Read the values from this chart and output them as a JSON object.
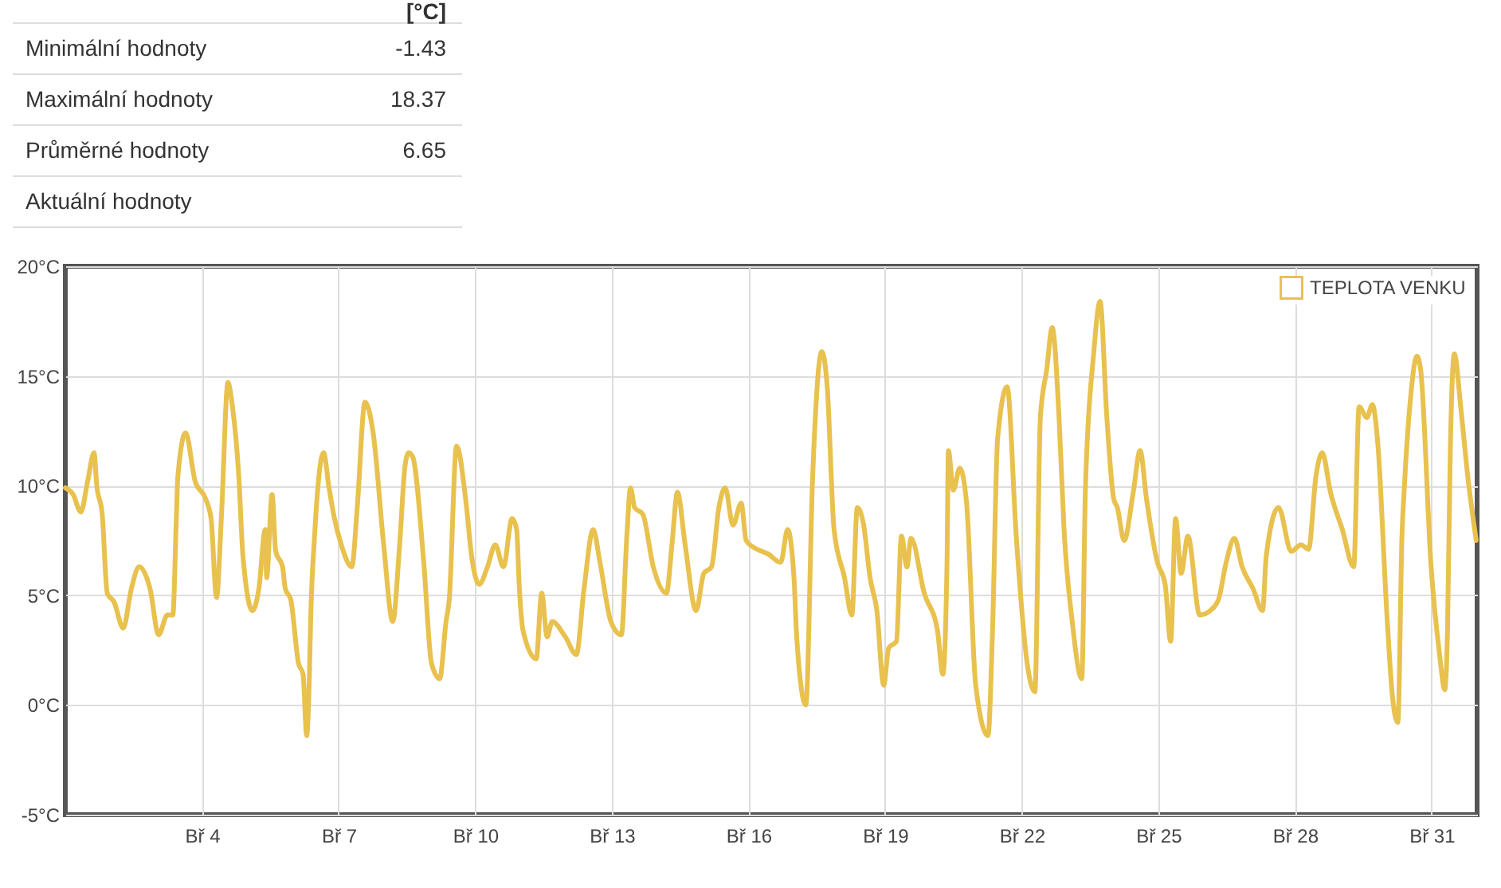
{
  "chart_data": {
    "type": "line",
    "annotations": [
      "[°C]",
      "Minimální hodnoty",
      "-1.43",
      "Maximální hodnoty",
      "18.37",
      "Průměrné hodnoty",
      "6.65",
      "Aktuální hodnoty"
    ],
    "x": [
      "--03-01T00:00",
      "--03-01T04:05",
      "--03-01T08:10",
      "--03-01T11:46",
      "--03-01T15:07",
      "--03-01T16:34",
      "--03-01T19:26",
      "--03-01T22:05",
      "--03-02T01:41",
      "--03-02T06:29",
      "--03-02T10:48",
      "--03-02T14:53",
      "--03-02T20:38",
      "--03-03T01:12",
      "--03-03T05:46",
      "--03-03T08:38",
      "--03-03T10:34",
      "--03-03T11:17",
      "--03-03T15:22",
      "--03-03T20:24",
      "--03-04T01:55",
      "--03-04T04:48",
      "--03-04T07:41",
      "--03-04T10:19",
      "--03-04T13:41",
      "--03-04T16:05",
      "--03-04T19:26",
      "--03-04T21:36",
      "--03-05T02:38",
      "--03-05T06:00",
      "--03-05T09:22",
      "--03-05T10:05",
      "--03-05T12:58",
      "--03-05T14:53",
      "--03-05T18:29",
      "--03-05T19:55",
      "--03-05T22:48",
      "--03-06T02:53",
      "--03-06T05:17",
      "--03-06T07:12",
      "--03-06T08:38",
      "--03-06T09:22",
      "--03-06T11:17",
      "--03-06T16:05",
      "--03-06T18:58",
      "--03-06T21:50",
      "--03-07T01:26",
      "--03-07T06:58",
      "--03-07T09:50",
      "--03-07T13:55",
      "--03-07T18:14",
      "--03-07T23:46",
      "--03-08T04:34",
      "--03-08T08:10",
      "--03-08T11:02",
      "--03-08T12:58",
      "--03-08T15:07",
      "--03-08T20:53",
      "--03-09T00:58",
      "--03-09T05:17",
      "--03-09T08:38",
      "--03-09T10:19",
      "--03-09T14:10",
      "--03-09T19:12",
      "--03-09T22:05",
      "--03-10T02:10",
      "--03-10T06:29",
      "--03-10T10:34",
      "--03-10T14:53",
      "--03-10T19:26",
      "--03-10T21:50",
      "--03-10T23:17",
      "--03-11T01:12",
      "--03-11T08:10",
      "--03-11T11:02",
      "--03-11T13:55",
      "--03-11T16:34",
      "--03-11T23:31",
      "--03-12T05:17",
      "--03-12T09:22",
      "--03-12T14:10",
      "--03-12T17:46",
      "--03-12T23:31",
      "--03-13T05:02",
      "--03-13T07:55",
      "--03-13T09:50",
      "--03-13T12:00",
      "--03-13T16:19",
      "--03-13T21:50",
      "--03-14T04:48",
      "--03-14T07:41",
      "--03-14T10:34",
      "--03-14T14:38",
      "--03-14T20:24",
      "--03-15T00:29",
      "--03-15T04:34",
      "--03-15T08:24",
      "--03-15T11:46",
      "--03-15T15:50",
      "--03-15T20:10",
      "--03-15T22:48",
      "--03-16T04:34",
      "--03-16T10:05",
      "--03-16T17:02",
      "--03-16T20:38",
      "--03-17T00:00",
      "--03-17T01:26",
      "--03-17T06:14",
      "--03-17T09:50",
      "--03-17T14:38",
      "--03-17T17:31",
      "--03-17T21:07",
      "--03-18T02:38",
      "--03-18T06:29",
      "--03-18T09:22",
      "--03-18T12:43",
      "--03-18T16:05",
      "--03-18T19:41",
      "--03-18T23:17",
      "--03-19T01:55",
      "--03-19T06:00",
      "--03-19T08:38",
      "--03-19T11:31",
      "--03-19T13:41",
      "--03-19T20:38",
      "--03-20T03:36",
      "--03-20T06:29",
      "--03-20T08:38",
      "--03-20T09:22",
      "--03-20T12:00",
      "--03-20T15:22",
      "--03-20T18:58",
      "--03-20T23:46",
      "--03-21T06:14",
      "--03-21T08:38",
      "--03-21T11:17",
      "--03-21T16:19",
      "--03-21T21:07",
      "--03-22T02:53",
      "--03-22T06:58",
      "--03-22T09:50",
      "--03-22T13:12",
      "--03-22T16:05",
      "--03-22T19:41",
      "--03-22T22:19",
      "--03-23T02:38",
      "--03-23T07:41",
      "--03-23T09:36",
      "--03-23T13:55",
      "--03-23T17:17",
      "--03-23T20:53",
      "--03-24T00:29",
      "--03-24T02:24",
      "--03-24T06:00",
      "--03-24T10:48",
      "--03-24T14:24",
      "--03-24T17:46",
      "--03-24T23:31",
      "--03-25T03:36",
      "--03-25T06:29",
      "--03-25T09:07",
      "--03-25T12:00",
      "--03-25T15:36",
      "--03-25T21:50",
      "--03-26T03:22",
      "--03-26T07:41",
      "--03-26T11:46",
      "--03-26T16:05",
      "--03-26T20:10",
      "--03-27T01:55",
      "--03-27T06:58",
      "--03-27T08:53",
      "--03-27T15:22",
      "--03-27T22:05",
      "--03-28T03:07",
      "--03-28T07:12",
      "--03-28T11:02",
      "--03-28T14:24",
      "--03-28T18:43",
      "--03-29T00:58",
      "--03-29T06:58",
      "--03-29T09:50",
      "--03-29T13:55",
      "--03-29T16:48",
      "--03-29T19:41",
      "--03-30T00:29",
      "--03-30T03:22",
      "--03-30T06:14",
      "--03-30T08:24",
      "--03-30T09:50",
      "--03-30T12:43",
      "--03-30T16:19",
      "--03-30T18:14",
      "--03-30T23:46",
      "--03-31T04:05",
      "--03-31T06:58",
      "--03-31T08:24",
      "--03-31T09:50",
      "--03-31T12:00",
      "--03-31T15:22",
      "--03-31T18:43",
      "--03-31T23:31"
    ],
    "series": [
      {
        "name": "TEPLOTA VENKU",
        "color": "#e8c14e",
        "values": [
          9.9,
          9.6,
          8.8,
          10.2,
          11.5,
          10.0,
          8.7,
          5.1,
          4.7,
          3.5,
          5.3,
          6.3,
          5.3,
          3.2,
          4.1,
          4.1,
          8.7,
          10.4,
          12.4,
          10.2,
          9.4,
          8.5,
          4.9,
          8.7,
          14.7,
          13.6,
          10.4,
          6.8,
          4.3,
          5.3,
          8.0,
          5.8,
          9.6,
          7.0,
          6.3,
          5.3,
          4.8,
          1.9,
          1.4,
          -1.4,
          1.4,
          4.1,
          7.6,
          11.5,
          9.9,
          8.5,
          7.3,
          6.3,
          9.0,
          13.8,
          12.4,
          7.3,
          3.8,
          7.3,
          10.9,
          11.5,
          11.3,
          6.5,
          1.9,
          1.2,
          3.8,
          4.8,
          11.8,
          9.2,
          6.8,
          5.5,
          6.3,
          7.3,
          6.3,
          8.5,
          8.0,
          5.3,
          3.4,
          2.1,
          5.1,
          3.1,
          3.8,
          3.1,
          2.3,
          5.3,
          8.0,
          6.5,
          3.8,
          3.2,
          7.7,
          9.9,
          9.0,
          8.7,
          6.3,
          5.1,
          7.3,
          9.7,
          7.3,
          4.3,
          6.0,
          6.3,
          9.0,
          9.9,
          8.2,
          9.2,
          7.5,
          7.1,
          6.9,
          6.5,
          8.0,
          5.8,
          3.1,
          0.0,
          10.4,
          16.1,
          14.5,
          8.0,
          5.8,
          4.1,
          9.0,
          8.2,
          5.8,
          4.3,
          0.9,
          2.6,
          2.9,
          7.7,
          6.3,
          7.6,
          5.1,
          3.4,
          1.4,
          6.4,
          11.6,
          9.8,
          10.8,
          9.2,
          0.9,
          -1.4,
          3.4,
          12.1,
          14.5,
          7.7,
          1.9,
          0.6,
          13.1,
          15.3,
          17.2,
          13.1,
          8.0,
          3.8,
          1.2,
          9.9,
          16.0,
          18.4,
          13.1,
          9.4,
          9.0,
          7.5,
          9.7,
          11.6,
          9.4,
          6.5,
          5.5,
          2.9,
          8.5,
          6.0,
          7.7,
          4.1,
          4.3,
          4.8,
          6.5,
          7.6,
          6.3,
          5.3,
          4.3,
          6.8,
          9.0,
          7.0,
          7.3,
          7.1,
          10.4,
          11.5,
          9.7,
          8.0,
          6.3,
          13.6,
          13.1,
          13.7,
          11.9,
          4.1,
          0.4,
          -0.8,
          7.7,
          10.2,
          13.8,
          15.9,
          15.3,
          6.3,
          2.4,
          0.7,
          3.4,
          11.4,
          16.0,
          13.6,
          10.7,
          7.5
        ]
      }
    ],
    "xlim": [
      "--03-01",
      "--04-01"
    ],
    "xticks": [
      {
        "value": "--03-04",
        "label": "Bř 4"
      },
      {
        "value": "--03-07",
        "label": "Bř 7"
      },
      {
        "value": "--03-10",
        "label": "Bř 10"
      },
      {
        "value": "--03-13",
        "label": "Bř 13"
      },
      {
        "value": "--03-16",
        "label": "Bř 16"
      },
      {
        "value": "--03-19",
        "label": "Bř 19"
      },
      {
        "value": "--03-22",
        "label": "Bř 22"
      },
      {
        "value": "--03-25",
        "label": "Bř 25"
      },
      {
        "value": "--03-28",
        "label": "Bř 28"
      },
      {
        "value": "--03-31",
        "label": "Bř 31"
      }
    ],
    "ylim": [
      -5,
      20
    ],
    "yticks": [
      {
        "value": -5,
        "label": "-5°C"
      },
      {
        "value": 0,
        "label": "0°C"
      },
      {
        "value": 5,
        "label": "5°C"
      },
      {
        "value": 10,
        "label": "10°C"
      },
      {
        "value": 15,
        "label": "15°C"
      },
      {
        "value": 20,
        "label": "20°C"
      }
    ],
    "grid": true,
    "legend": "top right",
    "marker": "none",
    "line_style": "solid"
  }
}
